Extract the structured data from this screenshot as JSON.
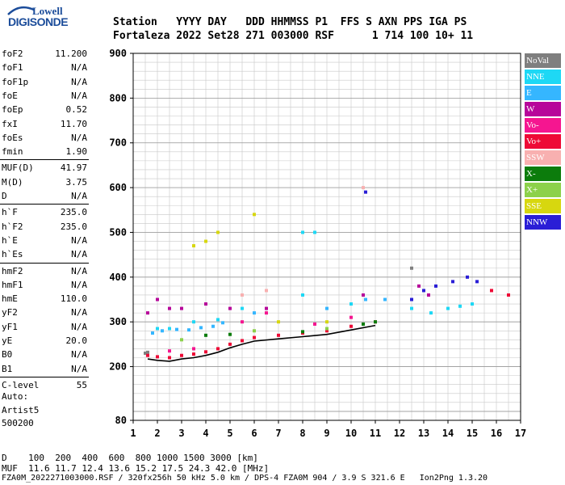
{
  "header": {
    "line1": "Station   YYYY DAY   DDD HHMMSS P1  FFS S AXN PPS IGA PS",
    "line2": "Fortaleza 2022 Set28 271 003000 RSF      1 714 100 10+ 11"
  },
  "logo": {
    "top": "Lowell",
    "bottom": "DIGISONDE"
  },
  "params": [
    {
      "name": "foF2",
      "value": "11.200"
    },
    {
      "name": "foF1",
      "value": "N/A"
    },
    {
      "name": "foF1p",
      "value": "N/A"
    },
    {
      "name": "foE",
      "value": "N/A"
    },
    {
      "name": "foEp",
      "value": "0.52"
    },
    {
      "name": "fxI",
      "value": "11.70"
    },
    {
      "name": "foEs",
      "value": "N/A"
    },
    {
      "name": "fmin",
      "value": "1.90"
    },
    {
      "name": "MUF(D)",
      "value": "41.97"
    },
    {
      "name": "M(D)",
      "value": "3.75"
    },
    {
      "name": "D",
      "value": "N/A"
    },
    {
      "name": "h`F",
      "value": "235.0"
    },
    {
      "name": "h`F2",
      "value": "235.0"
    },
    {
      "name": "h`E",
      "value": "N/A"
    },
    {
      "name": "h`Es",
      "value": "N/A"
    },
    {
      "name": "hmF2",
      "value": "N/A"
    },
    {
      "name": "hmF1",
      "value": "N/A"
    },
    {
      "name": "hmE",
      "value": "110.0"
    },
    {
      "name": "yF2",
      "value": "N/A"
    },
    {
      "name": "yF1",
      "value": "N/A"
    },
    {
      "name": "yE",
      "value": "20.0"
    },
    {
      "name": "B0",
      "value": "N/A"
    },
    {
      "name": "B1",
      "value": "N/A"
    },
    {
      "name": "C-level",
      "value": "55"
    }
  ],
  "misc": {
    "auto": "Auto:",
    "artist": "Artist5",
    "code": "500200"
  },
  "footer": {
    "line1": "D    100  200  400  600  800 1000 1500 3000 [km]",
    "line2": "MUF  11.6 11.7 12.4 13.6 15.2 17.5 24.3 42.0 [MHz]",
    "line3": "FZA0M_2022271003000.RSF / 320fx256h 50 kHz 5.0 km / DPS-4 FZA0M 904 / 3.9 S 321.6 E   Ion2Png 1.3.20"
  },
  "legend": [
    {
      "label": "NoVal",
      "color": "#7f7f7f"
    },
    {
      "label": "NNE",
      "color": "#1ed8f5"
    },
    {
      "label": "E",
      "color": "#35b6ff"
    },
    {
      "label": "W",
      "color": "#b7069a"
    },
    {
      "label": "Vo-",
      "color": "#f51690"
    },
    {
      "label": "Vo+",
      "color": "#ee0a36"
    },
    {
      "label": "SSW",
      "color": "#f8b0b0"
    },
    {
      "label": "X-",
      "color": "#0c7c0c"
    },
    {
      "label": "X+",
      "color": "#8cd14a"
    },
    {
      "label": "SSE",
      "color": "#d7d70f"
    },
    {
      "label": "NNW",
      "color": "#2a1ed6"
    }
  ],
  "chart_data": {
    "type": "scatter",
    "title": "",
    "xlabel": "",
    "ylabel": "",
    "xlim": [
      1,
      17
    ],
    "ylim": [
      80,
      900
    ],
    "xticks": [
      "1",
      "2",
      "3",
      "4",
      "5",
      "6",
      "7",
      "8",
      "9",
      "10",
      "11",
      "12",
      "13",
      "14",
      "15",
      "16",
      "17"
    ],
    "yticks": [
      "80",
      "200",
      "300",
      "400",
      "500",
      "600",
      "700",
      "800",
      "900"
    ],
    "grid": true,
    "legend_position": "right",
    "series": [
      {
        "name": "NoVal",
        "points": [
          [
            1.5,
            230
          ],
          [
            1.6,
            232
          ],
          [
            12.5,
            420
          ]
        ]
      },
      {
        "name": "NNE",
        "points": [
          [
            2.0,
            285
          ],
          [
            2.5,
            285
          ],
          [
            3.5,
            300
          ],
          [
            4.5,
            305
          ],
          [
            5.5,
            330
          ],
          [
            8.0,
            360
          ],
          [
            10.0,
            340
          ],
          [
            12.5,
            330
          ],
          [
            13.3,
            320
          ],
          [
            14.0,
            330
          ],
          [
            14.5,
            335
          ],
          [
            15.0,
            340
          ],
          [
            8.0,
            500
          ],
          [
            8.5,
            500
          ]
        ]
      },
      {
        "name": "E",
        "points": [
          [
            1.8,
            275
          ],
          [
            2.2,
            280
          ],
          [
            2.8,
            283
          ],
          [
            3.3,
            282
          ],
          [
            3.8,
            287
          ],
          [
            4.3,
            290
          ],
          [
            4.7,
            298
          ],
          [
            6.0,
            320
          ],
          [
            9.0,
            330
          ],
          [
            10.6,
            350
          ],
          [
            11.4,
            350
          ]
        ]
      },
      {
        "name": "W",
        "points": [
          [
            1.6,
            320
          ],
          [
            2.0,
            350
          ],
          [
            2.5,
            330
          ],
          [
            3.0,
            330
          ],
          [
            4.0,
            340
          ],
          [
            5.0,
            330
          ],
          [
            6.5,
            330
          ],
          [
            10.5,
            360
          ],
          [
            12.8,
            380
          ],
          [
            13.2,
            360
          ]
        ]
      },
      {
        "name": "Vo-",
        "points": [
          [
            2.5,
            235
          ],
          [
            3.5,
            240
          ],
          [
            5.5,
            300
          ],
          [
            6.5,
            320
          ],
          [
            8.5,
            295
          ],
          [
            10.0,
            310
          ]
        ]
      },
      {
        "name": "Vo+",
        "points": [
          [
            1.6,
            225
          ],
          [
            2.0,
            222
          ],
          [
            2.5,
            220
          ],
          [
            3.0,
            225
          ],
          [
            3.5,
            228
          ],
          [
            4.0,
            233
          ],
          [
            4.5,
            240
          ],
          [
            5.0,
            250
          ],
          [
            5.5,
            258
          ],
          [
            6.0,
            265
          ],
          [
            7.0,
            270
          ],
          [
            8.0,
            275
          ],
          [
            9.0,
            280
          ],
          [
            10.0,
            290
          ],
          [
            11.0,
            300
          ],
          [
            15.8,
            370
          ],
          [
            16.5,
            360
          ]
        ]
      },
      {
        "name": "SSW",
        "points": [
          [
            5.5,
            360
          ],
          [
            6.5,
            370
          ],
          [
            10.5,
            600
          ]
        ]
      },
      {
        "name": "X-",
        "points": [
          [
            4.0,
            270
          ],
          [
            5.0,
            272
          ],
          [
            8.0,
            278
          ],
          [
            10.5,
            295
          ],
          [
            11.0,
            300
          ]
        ]
      },
      {
        "name": "X+",
        "points": [
          [
            3.0,
            260
          ],
          [
            6.0,
            280
          ],
          [
            9.0,
            285
          ]
        ]
      },
      {
        "name": "SSE",
        "points": [
          [
            3.5,
            470
          ],
          [
            4.0,
            480
          ],
          [
            4.5,
            500
          ],
          [
            6.0,
            540
          ],
          [
            7.0,
            300
          ],
          [
            9.0,
            300
          ]
        ]
      },
      {
        "name": "NNW",
        "points": [
          [
            12.5,
            350
          ],
          [
            13.0,
            370
          ],
          [
            13.5,
            380
          ],
          [
            14.2,
            390
          ],
          [
            14.8,
            400
          ],
          [
            15.2,
            390
          ],
          [
            10.6,
            590
          ]
        ]
      }
    ]
  }
}
